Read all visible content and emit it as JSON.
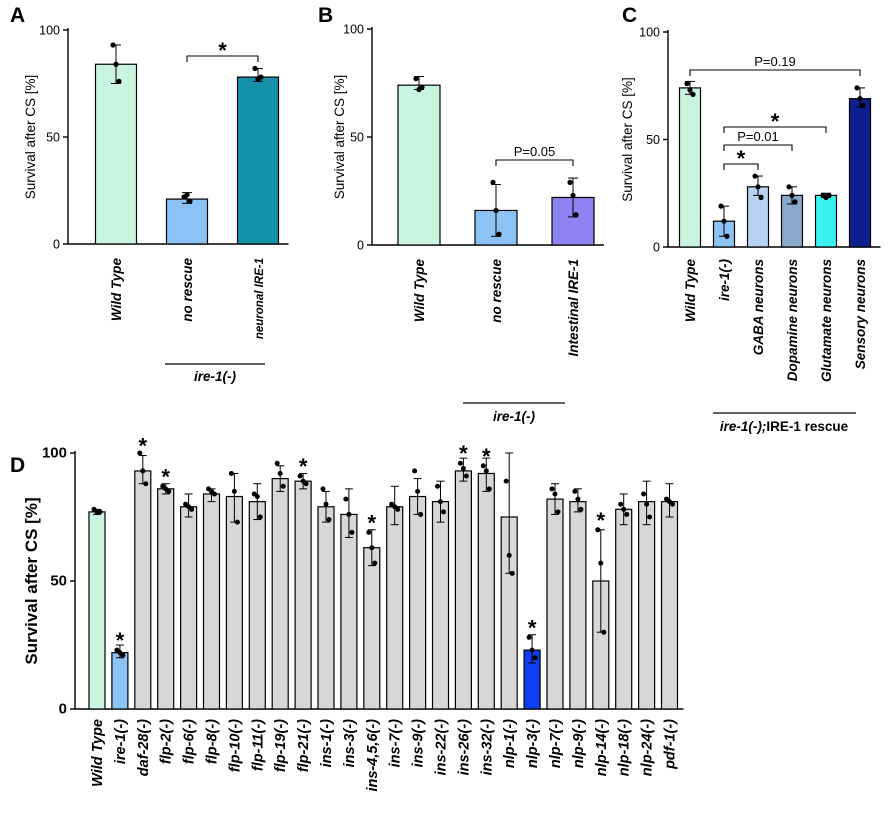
{
  "chart_data": [
    {
      "panel": "A",
      "type": "bar",
      "ylabel": "Survival after CS [%]",
      "ylim": [
        0,
        100
      ],
      "yticks": [
        0,
        50,
        100
      ],
      "categories": [
        "Wild Type",
        "no rescue",
        "neuronal IRE-1"
      ],
      "values": [
        84,
        21,
        78
      ],
      "error_low": [
        75,
        19,
        76
      ],
      "error_high": [
        93,
        24,
        82
      ],
      "points": [
        [
          93,
          84,
          76
        ],
        [
          22,
          23,
          20
        ],
        [
          82,
          77,
          78
        ]
      ],
      "colors": [
        "#c9f5e0",
        "#8cc3f5",
        "#1591a8"
      ],
      "group_label": "ire-1(-)",
      "annotations": [
        {
          "text": "*",
          "from": 1,
          "to": 2
        }
      ]
    },
    {
      "panel": "B",
      "type": "bar",
      "ylabel": "Survival after CS [%]",
      "ylim": [
        0,
        100
      ],
      "yticks": [
        0,
        50,
        100
      ],
      "categories": [
        "Wild Type",
        "no rescue",
        "Intestinal IRE-1"
      ],
      "values": [
        74,
        16,
        22
      ],
      "error_low": [
        72,
        4,
        13
      ],
      "error_high": [
        78,
        28,
        31
      ],
      "points": [
        [
          77,
          72,
          73
        ],
        [
          29,
          16,
          5
        ],
        [
          29,
          23,
          14
        ]
      ],
      "colors": [
        "#c9f5e0",
        "#8cc3f5",
        "#8f82f2"
      ],
      "group_label": "ire-1(-)",
      "annotations": [
        {
          "text": "P=0.05",
          "from": 1,
          "to": 2
        }
      ]
    },
    {
      "panel": "C",
      "type": "bar",
      "ylabel": "Survival after CS [%]",
      "ylim": [
        0,
        100
      ],
      "yticks": [
        0,
        50,
        100
      ],
      "categories": [
        "Wild Type",
        "ire-1(-)",
        "GABA neurons",
        "Dopamine neurons",
        "Glutamate neurons",
        "Sensory neurons"
      ],
      "values": [
        74,
        12,
        28,
        24,
        24,
        69
      ],
      "error_low": [
        71,
        5,
        24,
        20,
        23,
        65
      ],
      "error_high": [
        77,
        19,
        33,
        28,
        25,
        74
      ],
      "points": [
        [
          76,
          73,
          71
        ],
        [
          19,
          12,
          5
        ],
        [
          33,
          28,
          23
        ],
        [
          28,
          24,
          21
        ],
        [
          24,
          23,
          24
        ],
        [
          74,
          69,
          66
        ]
      ],
      "colors": [
        "#c9f5e0",
        "#8cc3f5",
        "#b8d2f3",
        "#8aa8cc",
        "#39f2ef",
        "#0d1f8e"
      ],
      "group_label": "ire-1(-);IRE-1 rescue",
      "annotations": [
        {
          "text": "P=0.19",
          "from": 0,
          "to": 5
        },
        {
          "text": "*",
          "from": 1,
          "to": 4
        },
        {
          "text": "P=0.01",
          "from": 1,
          "to": 3
        },
        {
          "text": "*",
          "from": 1,
          "to": 2
        }
      ]
    },
    {
      "panel": "D",
      "type": "bar",
      "ylabel": "Survival after CS [%]",
      "ylim": [
        0,
        100
      ],
      "yticks": [
        0,
        50,
        100
      ],
      "categories": [
        "Wild Type",
        "ire-1(-)",
        "daf-28(-)",
        "flp-2(-)",
        "flp-6(-)",
        "flp-8(-)",
        "flp-10(-)",
        "flp-11(-)",
        "flp-19(-)",
        "flp-21(-)",
        "ins-1(-)",
        "ins-3(-)",
        "ins-4,5,6(-)",
        "ins-7(-)",
        "ins-9(-)",
        "ins-22(-)",
        "ins-26(-)",
        "ins-32(-)",
        "nlp-1(-)",
        "nlp-3(-)",
        "nlp-7(-)",
        "nlp-9(-)",
        "nlp-14(-)",
        "nlp-18(-)",
        "nlp-24(-)",
        "pdf-1(-)"
      ],
      "values": [
        77,
        22,
        93,
        86,
        79,
        84,
        83,
        81,
        90,
        89,
        79,
        76,
        63,
        79,
        83,
        81,
        93,
        92,
        75,
        23,
        82,
        81,
        50,
        78,
        81,
        81
      ],
      "error_low": [
        76,
        20,
        88,
        84,
        75,
        81,
        73,
        74,
        85,
        86,
        73,
        67,
        56,
        72,
        76,
        73,
        89,
        85,
        53,
        18,
        76,
        77,
        30,
        72,
        72,
        75
      ],
      "error_high": [
        78,
        25,
        99,
        88,
        84,
        86,
        92,
        88,
        95,
        92,
        85,
        86,
        70,
        87,
        90,
        89,
        98,
        98,
        100,
        29,
        88,
        86,
        70,
        84,
        89,
        88
      ],
      "points": [
        [
          78,
          77,
          77
        ],
        [
          23,
          22,
          21
        ],
        [
          100,
          93,
          88
        ],
        [
          87,
          86,
          85
        ],
        [
          80,
          79,
          78
        ],
        [
          86,
          85,
          84
        ],
        [
          92,
          85,
          73
        ],
        [
          84,
          83,
          75
        ],
        [
          96,
          92,
          87
        ],
        [
          91,
          89,
          88
        ],
        [
          86,
          80,
          74
        ],
        [
          82,
          76,
          69
        ],
        [
          69,
          63,
          57
        ],
        [
          80,
          79,
          78
        ],
        [
          93,
          85,
          76
        ],
        [
          87,
          81,
          77
        ],
        [
          96,
          94,
          91
        ],
        [
          95,
          93,
          86
        ],
        [
          89,
          60,
          53
        ],
        [
          28,
          23,
          20
        ],
        [
          86,
          84,
          77
        ],
        [
          85,
          82,
          78
        ],
        [
          70,
          57,
          30
        ],
        [
          80,
          78,
          76
        ],
        [
          84,
          80,
          75
        ],
        [
          82,
          81,
          80
        ]
      ],
      "colors": {
        "wild": "#c9f5e0",
        "ire": "#8cc3f5",
        "mutant": "#d7d7d7",
        "nlp3": "#0f3df0"
      },
      "bar_colors": [
        "wild",
        "ire",
        "mutant",
        "mutant",
        "mutant",
        "mutant",
        "mutant",
        "mutant",
        "mutant",
        "mutant",
        "mutant",
        "mutant",
        "mutant",
        "mutant",
        "mutant",
        "mutant",
        "mutant",
        "mutant",
        "mutant",
        "nlp3",
        "mutant",
        "mutant",
        "mutant",
        "mutant",
        "mutant",
        "mutant"
      ],
      "significant": [
        1,
        2,
        3,
        9,
        12,
        16,
        17,
        19,
        22
      ]
    }
  ],
  "panel_letters": [
    "A",
    "B",
    "C",
    "D"
  ],
  "star_symbol": "*"
}
